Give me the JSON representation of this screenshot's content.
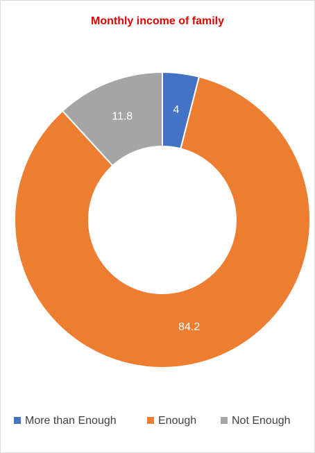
{
  "chart_data": {
    "type": "donut",
    "title": "Monthly income of family",
    "categories": [
      "More than Enough",
      "Enough",
      "Not Enough"
    ],
    "values": [
      4,
      84.2,
      11.8
    ],
    "colors": [
      "#4472c4",
      "#ed7d31",
      "#a5a5a5"
    ],
    "legend": "bottom"
  }
}
